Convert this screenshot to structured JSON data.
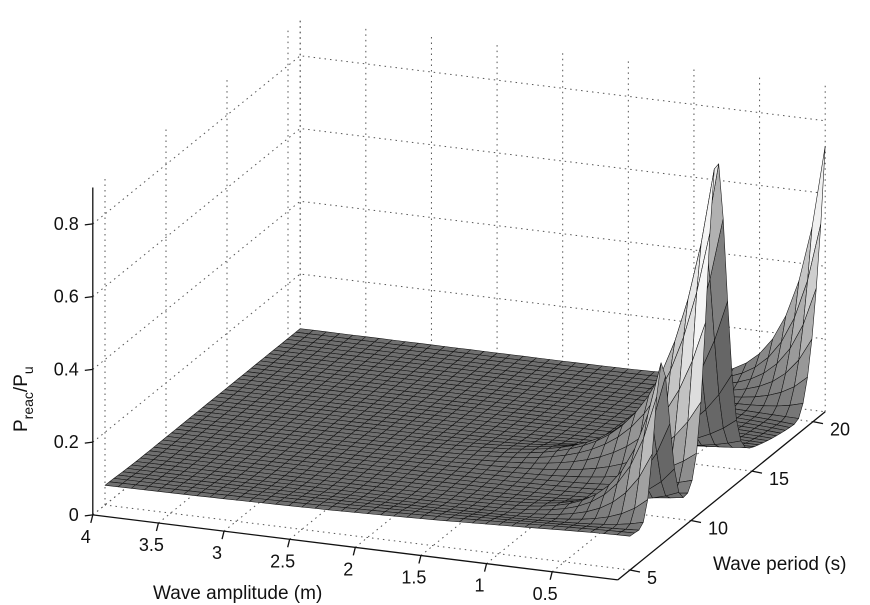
{
  "chart_data": {
    "type": "surface",
    "xlabel": "Wave amplitude (m)",
    "ylabel": "Wave period (s)",
    "zlabel": {
      "base": "P",
      "sub1": "reac",
      "mid": "/P",
      "sub2": "u"
    },
    "x_range": [
      0,
      4
    ],
    "y_range": [
      4,
      21
    ],
    "z_range": [
      0,
      0.9
    ],
    "x_ticks": [
      0.5,
      1,
      1.5,
      2,
      2.5,
      3,
      3.5,
      4
    ],
    "x_tick_labels": [
      "0.5",
      "1",
      "1.5",
      "2",
      "2.5",
      "3",
      "3.5",
      "4"
    ],
    "y_ticks": [
      5,
      10,
      15,
      20
    ],
    "y_tick_labels": [
      "5",
      "10",
      "15",
      "20"
    ],
    "z_ticks": [
      0,
      0.2,
      0.4,
      0.6,
      0.8
    ],
    "z_tick_labels": [
      "0",
      "0.2",
      "0.4",
      "0.6",
      "0.8"
    ],
    "grid": true,
    "colormap": "gray",
    "series": [
      {
        "x": 0.0,
        "period_values": [
          5,
          7.6,
          10,
          12.1,
          14,
          16,
          18,
          20,
          21
        ],
        "values": [
          0.1,
          0.55,
          0.3,
          0.75,
          0.1,
          0.07,
          0.1,
          0.35,
          0.75
        ]
      },
      {
        "x": 0.5,
        "period_values": [
          5,
          7.6,
          10,
          12.1,
          14,
          16,
          18,
          20,
          21
        ],
        "values": [
          0.07,
          0.27,
          0.12,
          0.9,
          0.12,
          0.04,
          0.07,
          0.12,
          0.2
        ]
      },
      {
        "x": 1.0,
        "period_values": [
          5,
          7.6,
          10,
          12.1,
          14,
          16,
          18,
          20,
          21
        ],
        "values": [
          0.05,
          0.07,
          0.06,
          0.15,
          0.1,
          0.05,
          0.05,
          0.05,
          0.06
        ]
      },
      {
        "x": 2.0,
        "period_values": [
          5,
          7.6,
          10,
          12.1,
          14,
          16,
          18,
          20,
          21
        ],
        "values": [
          0.04,
          0.05,
          0.05,
          0.05,
          0.05,
          0.05,
          0.05,
          0.05,
          0.05
        ]
      },
      {
        "x": 4.0,
        "period_values": [
          5,
          7.6,
          10,
          12.1,
          14,
          16,
          18,
          20,
          21
        ],
        "values": [
          0.03,
          0.04,
          0.04,
          0.04,
          0.04,
          0.04,
          0.04,
          0.04,
          0.04
        ]
      }
    ]
  }
}
